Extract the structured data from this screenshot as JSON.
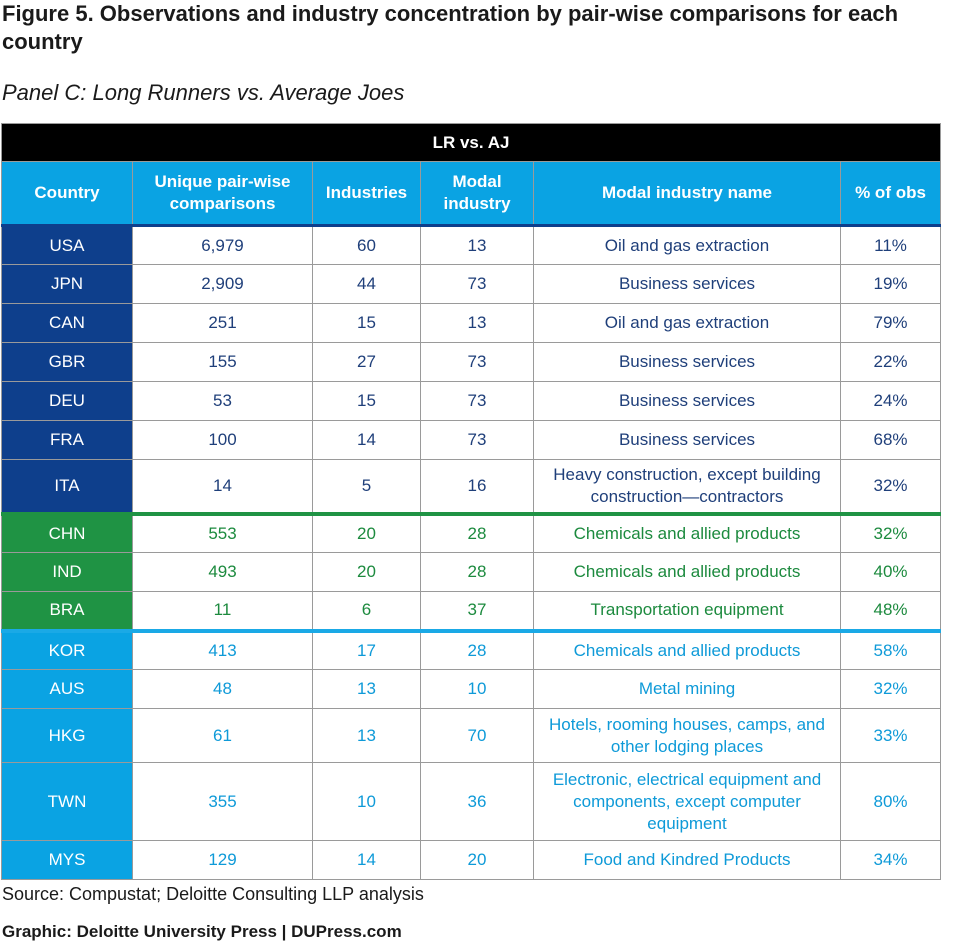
{
  "figure_title": "Figure 5. Observations and industry concentration by pair-wise comparisons for each country",
  "panel_title": "Panel C:  Long Runners vs. Average Joes",
  "table": {
    "group_header": "LR vs. AJ",
    "columns": [
      "Country",
      "Unique pair-wise comparisons",
      "Industries",
      "Modal industry",
      "Modal industry name",
      "% of obs"
    ],
    "rows": [
      {
        "country": "USA",
        "comparisons": "6,979",
        "industries": "60",
        "modal": "13",
        "name": "Oil and gas extraction",
        "pct": "11%"
      },
      {
        "country": "JPN",
        "comparisons": "2,909",
        "industries": "44",
        "modal": "73",
        "name": "Business services",
        "pct": "19%"
      },
      {
        "country": "CAN",
        "comparisons": "251",
        "industries": "15",
        "modal": "13",
        "name": "Oil and gas extraction",
        "pct": "79%"
      },
      {
        "country": "GBR",
        "comparisons": "155",
        "industries": "27",
        "modal": "73",
        "name": "Business services",
        "pct": "22%"
      },
      {
        "country": "DEU",
        "comparisons": "53",
        "industries": "15",
        "modal": "73",
        "name": "Business services",
        "pct": "24%"
      },
      {
        "country": "FRA",
        "comparisons": "100",
        "industries": "14",
        "modal": "73",
        "name": "Business services",
        "pct": "68%"
      },
      {
        "country": "ITA",
        "comparisons": "14",
        "industries": "5",
        "modal": "16",
        "name": "Heavy construction, except building construction—contractors",
        "pct": "32%"
      },
      {
        "country": "CHN",
        "comparisons": "553",
        "industries": "20",
        "modal": "28",
        "name": "Chemicals and allied products",
        "pct": "32%"
      },
      {
        "country": "IND",
        "comparisons": "493",
        "industries": "20",
        "modal": "28",
        "name": "Chemicals and allied products",
        "pct": "40%"
      },
      {
        "country": "BRA",
        "comparisons": "11",
        "industries": "6",
        "modal": "37",
        "name": "Transportation equipment",
        "pct": "48%"
      },
      {
        "country": "KOR",
        "comparisons": "413",
        "industries": "17",
        "modal": "28",
        "name": "Chemicals and allied products",
        "pct": "58%"
      },
      {
        "country": "AUS",
        "comparisons": "48",
        "industries": "13",
        "modal": "10",
        "name": "Metal mining",
        "pct": "32%"
      },
      {
        "country": "HKG",
        "comparisons": "61",
        "industries": "13",
        "modal": "70",
        "name": "Hotels, rooming houses, camps, and other lodging places",
        "pct": "33%"
      },
      {
        "country": "TWN",
        "comparisons": "355",
        "industries": "10",
        "modal": "36",
        "name": "Electronic, electrical equipment and components, except computer equipment",
        "pct": "80%"
      },
      {
        "country": "MYS",
        "comparisons": "129",
        "industries": "14",
        "modal": "20",
        "name": "Food and Kindred Products",
        "pct": "34%"
      }
    ]
  },
  "colors": {
    "developed": "#0e3f8c",
    "emerging": "#1f9344",
    "asia_pacific": "#0aa3e3",
    "header": "#000000"
  },
  "source": "Source: Compustat; Deloitte Consulting LLP analysis",
  "graphic_credit": "Graphic: Deloitte University Press  |  DUPress.com"
}
